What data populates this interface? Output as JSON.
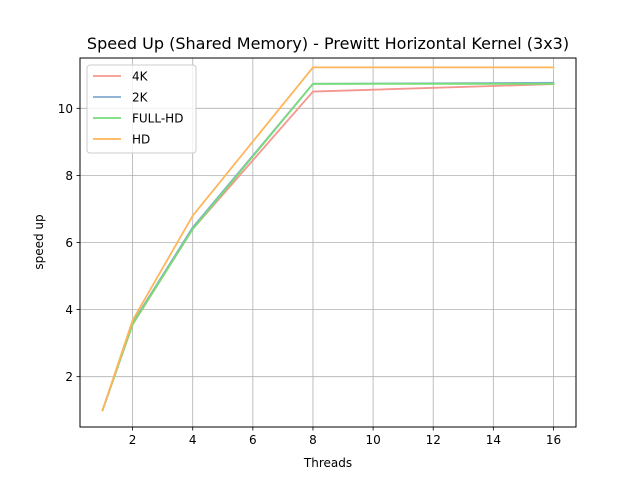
{
  "chart_data": {
    "type": "line",
    "title": "Speed Up (Shared Memory) - Prewitt Horizontal Kernel (3x3)",
    "xlabel": "Threads",
    "ylabel": "speed up",
    "x": [
      1,
      2,
      4,
      8,
      16
    ],
    "xticks": [
      2,
      4,
      6,
      8,
      10,
      12,
      14,
      16
    ],
    "yticks": [
      2,
      4,
      6,
      8,
      10
    ],
    "xlim": [
      0.25,
      16.75
    ],
    "ylim": [
      0.5,
      11.5
    ],
    "grid": true,
    "legend_position": "upper-left",
    "series": [
      {
        "name": "4K",
        "color": "#f4978e",
        "values": [
          1.0,
          3.55,
          6.4,
          10.5,
          10.72
        ]
      },
      {
        "name": "2K",
        "color": "#83a9cf",
        "values": [
          1.0,
          3.6,
          6.45,
          10.73,
          10.76
        ]
      },
      {
        "name": "FULL-HD",
        "color": "#77dd77",
        "values": [
          1.0,
          3.57,
          6.4,
          10.73,
          10.73
        ]
      },
      {
        "name": "HD",
        "color": "#ffb55a",
        "values": [
          1.0,
          3.68,
          6.8,
          11.22,
          11.22
        ]
      }
    ]
  }
}
